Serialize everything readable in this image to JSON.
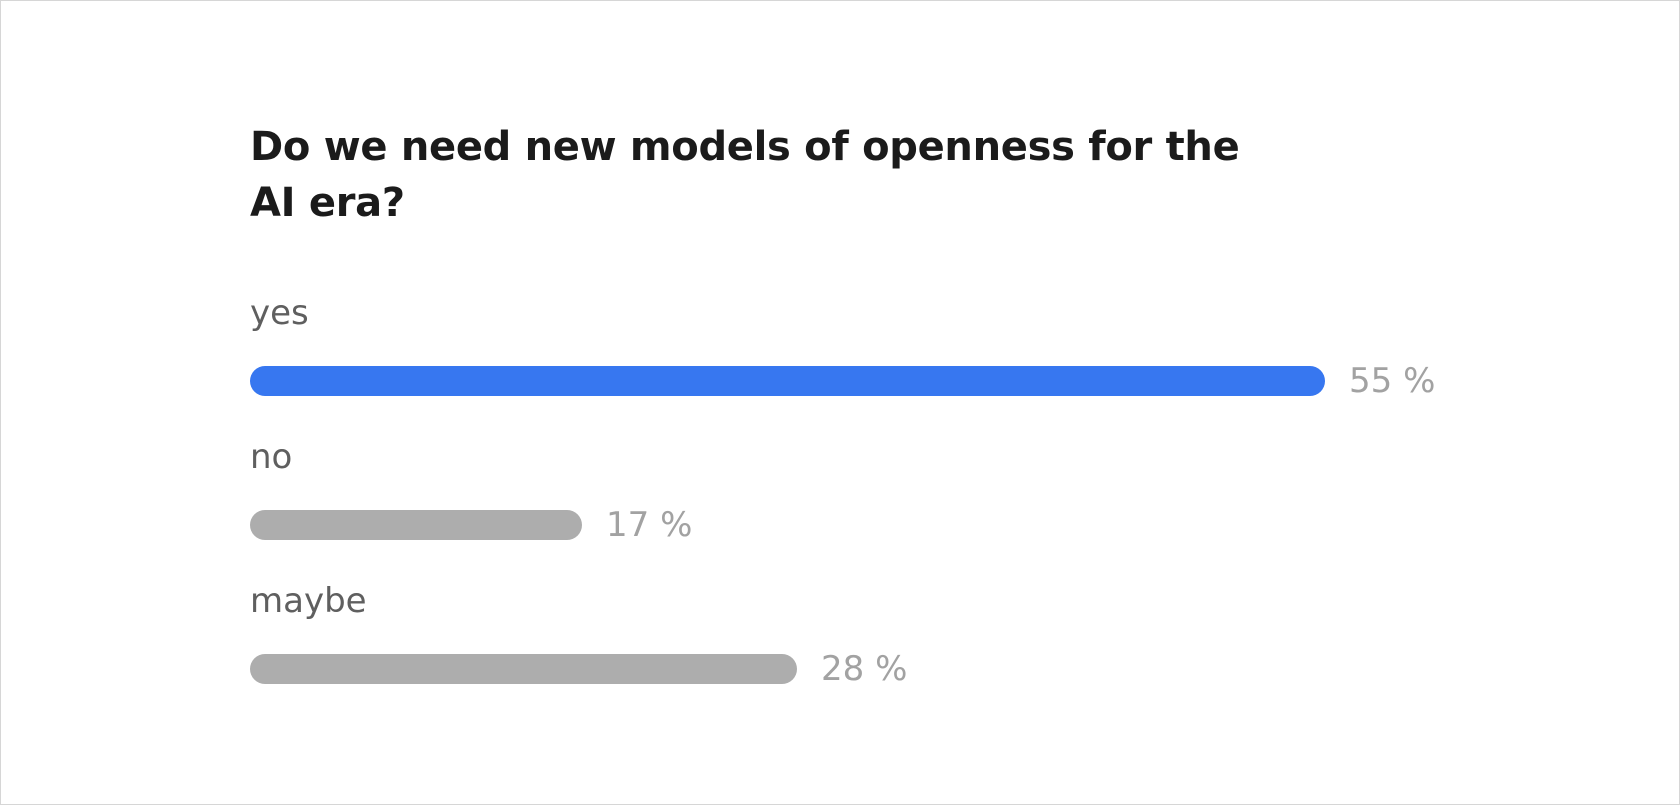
{
  "poll": {
    "title": "Do we need new models of openness for the AI era?"
  },
  "chart_data": {
    "type": "bar",
    "orientation": "horizontal",
    "title": "Do we need new models of openness for the AI era?",
    "categories": [
      "yes",
      "no",
      "maybe"
    ],
    "values": [
      55,
      17,
      28
    ],
    "value_labels": [
      "55 %",
      "17 %",
      "28 %"
    ],
    "unit": "%",
    "grid": false,
    "highlight_index": 0,
    "colors": {
      "highlight": "#3777f0",
      "default": "#adadad",
      "value_label": "#a2a2a2",
      "option_label": "#5f5f5f",
      "title": "#1b1b1b"
    }
  }
}
